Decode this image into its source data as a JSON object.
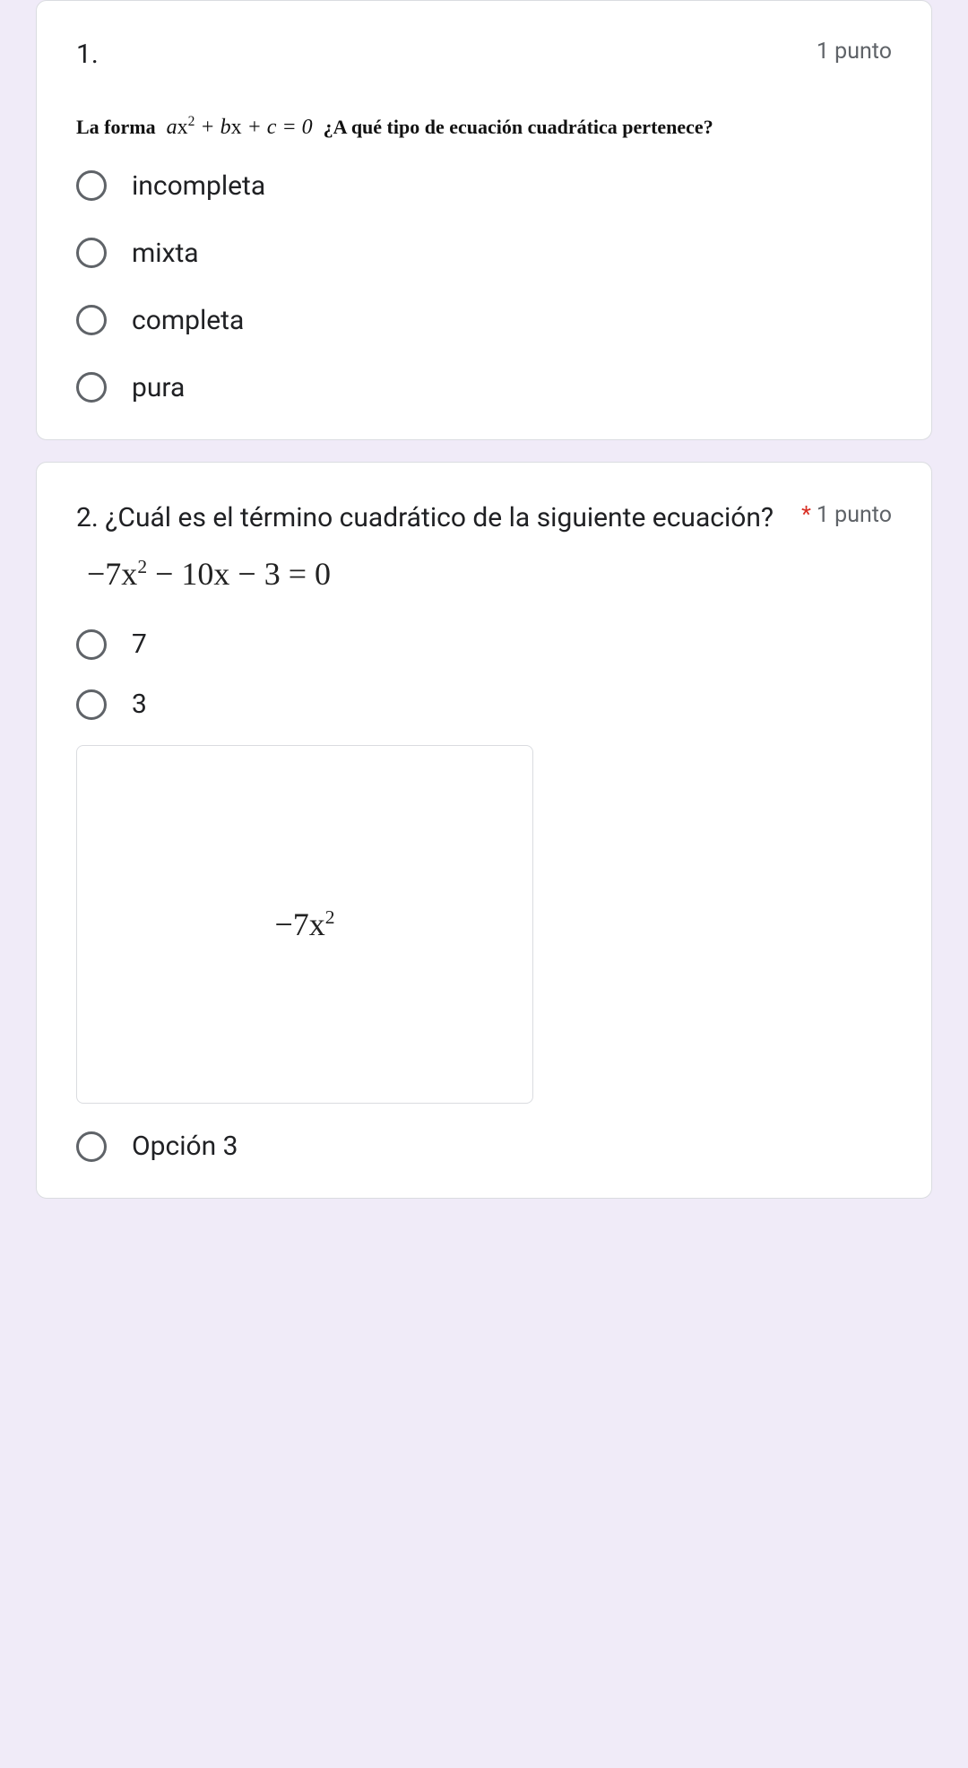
{
  "page": {
    "background": "#f0ebf8",
    "card_bg": "#ffffff",
    "border_color": "#dadce0",
    "text_color": "#202124",
    "muted_color": "#5f6368",
    "required_color": "#d93025"
  },
  "q1": {
    "number": "1.",
    "points": "1 punto",
    "required": false,
    "prompt_lead": "La forma",
    "prompt_math": "ax² + bx + c = 0",
    "prompt_tail": "¿A qué tipo de ecuación cuadrática pertenece?",
    "options": [
      {
        "label": "incompleta"
      },
      {
        "label": "mixta"
      },
      {
        "label": "completa"
      },
      {
        "label": "pura"
      }
    ]
  },
  "q2": {
    "title": "2. ¿Cuál es el término cuadrático de la siguiente ecuación?",
    "points": "1 punto",
    "required": true,
    "equation": "−7x² − 10x − 3 = 0",
    "options_top": [
      {
        "label": "7"
      },
      {
        "label": "3"
      }
    ],
    "image_option_math": "−7x²",
    "option3_label": "Opción 3"
  }
}
